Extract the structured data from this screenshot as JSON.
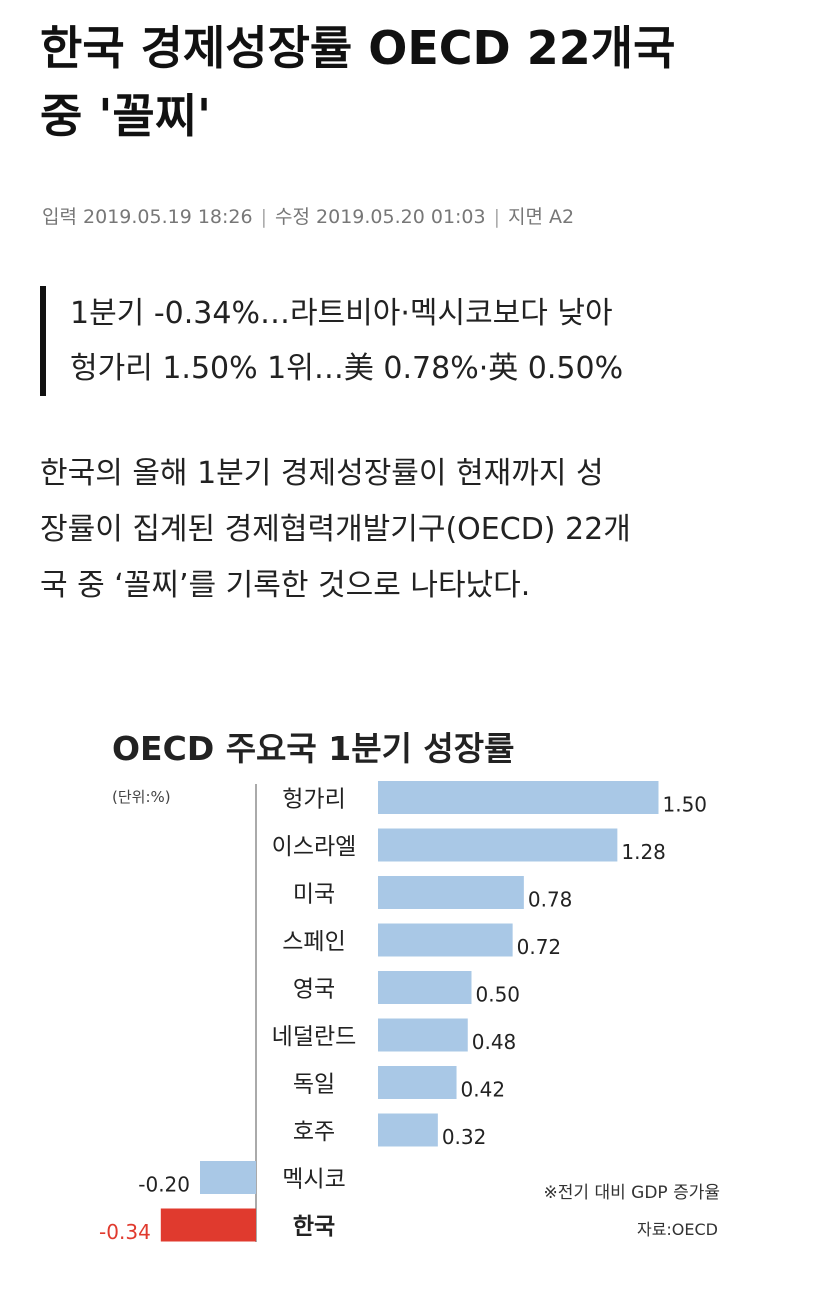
{
  "article": {
    "headline_line1": "한국 경제성장률 OECD 22개국",
    "headline_line2": "중 '꼴찌'",
    "meta": {
      "input_label": "입력",
      "input_time": "2019.05.19 18:26",
      "modified_label": "수정",
      "modified_time": "2019.05.20 01:03",
      "page_label": "지면",
      "page": "A2"
    },
    "subheads": [
      "1분기 -0.34%…라트비아·멕시코보다 낮아",
      "헝가리 1.50% 1위…美 0.78%·英 0.50%"
    ],
    "body_lines": [
      "한국의 올해 1분기 경제성장률이 현재까지 성",
      "장률이 집계된 경제협력개발기구(OECD) 22개",
      "국 중 ‘꼴찌’를 기록한 것으로 나타났다."
    ]
  },
  "chart_data": {
    "type": "bar",
    "orientation": "horizontal",
    "title": "OECD 주요국 1분기 성장률",
    "unit_label": "(단위:%)",
    "categories": [
      "헝가리",
      "이스라엘",
      "미국",
      "스페인",
      "영국",
      "네덜란드",
      "독일",
      "호주",
      "멕시코",
      "한국"
    ],
    "values": [
      1.5,
      1.28,
      0.78,
      0.72,
      0.5,
      0.48,
      0.42,
      0.32,
      -0.2,
      -0.34
    ],
    "value_labels": [
      "1.50",
      "1.28",
      "0.78",
      "0.72",
      "0.50",
      "0.48",
      "0.42",
      "0.32",
      "-0.20",
      "-0.34"
    ],
    "highlight_category": "한국",
    "note": "※전기 대비 GDP 증가율",
    "source": "자료:OECD",
    "colors": {
      "bar": "#a9c8e6",
      "highlight": "#e03a2e",
      "highlight_text": "#e03a2e"
    }
  }
}
